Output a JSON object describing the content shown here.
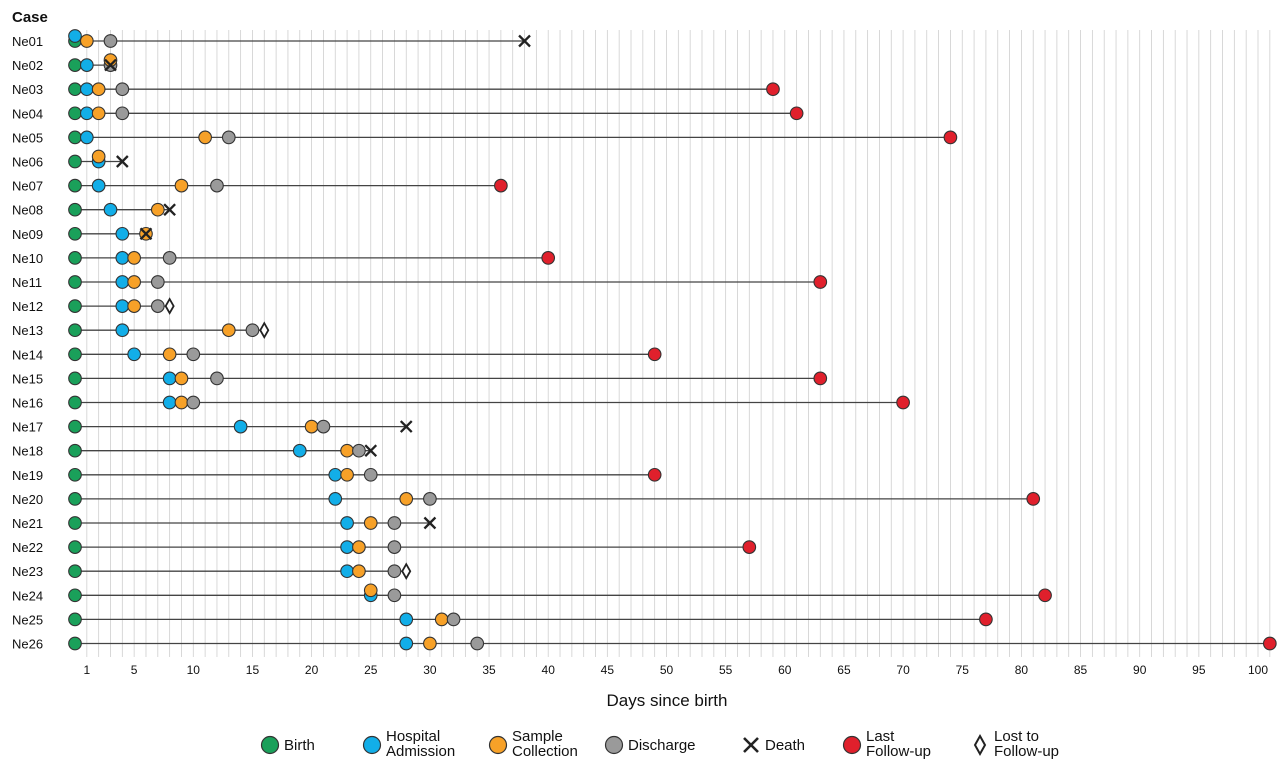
{
  "chart_data": {
    "type": "scatter",
    "subtype": "timeline",
    "ylabel": "Case",
    "xlabel": "Days since birth",
    "xlim": [
      0,
      101
    ],
    "x_ticks": [
      1,
      5,
      10,
      15,
      20,
      25,
      30,
      35,
      40,
      45,
      50,
      55,
      60,
      65,
      70,
      75,
      80,
      85,
      90,
      95,
      100
    ],
    "grid": "vertical",
    "legend_position": "bottom",
    "event_types": [
      {
        "key": "birth",
        "label": "Birth",
        "color": "#1aa05a",
        "shape": "circle"
      },
      {
        "key": "admission",
        "label": "Hospital Admission",
        "color": "#12aee8",
        "shape": "circle"
      },
      {
        "key": "sample",
        "label": "Sample Collection",
        "color": "#f7a128",
        "shape": "circle"
      },
      {
        "key": "discharge",
        "label": "Discharge",
        "color": "#9a9a9a",
        "shape": "circle"
      },
      {
        "key": "death",
        "label": "Death",
        "color": "#222222",
        "shape": "x"
      },
      {
        "key": "followup",
        "label": "Last Follow-up",
        "color": "#e0202c",
        "shape": "circle"
      },
      {
        "key": "lost",
        "label": "Lost to Follow-up",
        "color": "#222222",
        "shape": "diamond"
      }
    ],
    "cases": [
      {
        "name": "Ne01",
        "events": [
          [
            "birth",
            0
          ],
          [
            "admission",
            0
          ],
          [
            "sample",
            1
          ],
          [
            "discharge",
            3
          ],
          [
            "death",
            38
          ]
        ]
      },
      {
        "name": "Ne02",
        "events": [
          [
            "birth",
            0
          ],
          [
            "admission",
            1
          ],
          [
            "discharge",
            3
          ],
          [
            "sample",
            3
          ],
          [
            "death",
            3
          ]
        ]
      },
      {
        "name": "Ne03",
        "events": [
          [
            "birth",
            0
          ],
          [
            "admission",
            1
          ],
          [
            "sample",
            2
          ],
          [
            "discharge",
            4
          ],
          [
            "followup",
            59
          ]
        ]
      },
      {
        "name": "Ne04",
        "events": [
          [
            "birth",
            0
          ],
          [
            "admission",
            1
          ],
          [
            "sample",
            2
          ],
          [
            "discharge",
            4
          ],
          [
            "followup",
            61
          ]
        ]
      },
      {
        "name": "Ne05",
        "events": [
          [
            "birth",
            0
          ],
          [
            "admission",
            1
          ],
          [
            "sample",
            11
          ],
          [
            "discharge",
            13
          ],
          [
            "followup",
            74
          ]
        ]
      },
      {
        "name": "Ne06",
        "events": [
          [
            "birth",
            0
          ],
          [
            "admission",
            2
          ],
          [
            "sample",
            2
          ],
          [
            "death",
            4
          ]
        ]
      },
      {
        "name": "Ne07",
        "events": [
          [
            "birth",
            0
          ],
          [
            "admission",
            2
          ],
          [
            "sample",
            9
          ],
          [
            "discharge",
            12
          ],
          [
            "followup",
            36
          ]
        ]
      },
      {
        "name": "Ne08",
        "events": [
          [
            "birth",
            0
          ],
          [
            "admission",
            3
          ],
          [
            "sample",
            7
          ],
          [
            "death",
            8
          ]
        ]
      },
      {
        "name": "Ne09",
        "events": [
          [
            "birth",
            0
          ],
          [
            "admission",
            4
          ],
          [
            "sample",
            6
          ],
          [
            "death",
            6
          ]
        ]
      },
      {
        "name": "Ne10",
        "events": [
          [
            "birth",
            0
          ],
          [
            "admission",
            4
          ],
          [
            "sample",
            5
          ],
          [
            "discharge",
            8
          ],
          [
            "followup",
            40
          ]
        ]
      },
      {
        "name": "Ne11",
        "events": [
          [
            "birth",
            0
          ],
          [
            "admission",
            4
          ],
          [
            "sample",
            5
          ],
          [
            "discharge",
            7
          ],
          [
            "followup",
            63
          ]
        ]
      },
      {
        "name": "Ne12",
        "events": [
          [
            "birth",
            0
          ],
          [
            "admission",
            4
          ],
          [
            "sample",
            5
          ],
          [
            "discharge",
            7
          ],
          [
            "lost",
            8
          ]
        ]
      },
      {
        "name": "Ne13",
        "events": [
          [
            "birth",
            0
          ],
          [
            "admission",
            4
          ],
          [
            "sample",
            13
          ],
          [
            "discharge",
            15
          ],
          [
            "lost",
            16
          ]
        ]
      },
      {
        "name": "Ne14",
        "events": [
          [
            "birth",
            0
          ],
          [
            "admission",
            5
          ],
          [
            "sample",
            8
          ],
          [
            "discharge",
            10
          ],
          [
            "followup",
            49
          ]
        ]
      },
      {
        "name": "Ne15",
        "events": [
          [
            "birth",
            0
          ],
          [
            "admission",
            8
          ],
          [
            "sample",
            9
          ],
          [
            "discharge",
            12
          ],
          [
            "followup",
            63
          ]
        ]
      },
      {
        "name": "Ne16",
        "events": [
          [
            "birth",
            0
          ],
          [
            "admission",
            8
          ],
          [
            "sample",
            9
          ],
          [
            "discharge",
            10
          ],
          [
            "followup",
            70
          ]
        ]
      },
      {
        "name": "Ne17",
        "events": [
          [
            "birth",
            0
          ],
          [
            "admission",
            14
          ],
          [
            "sample",
            20
          ],
          [
            "discharge",
            21
          ],
          [
            "death",
            28
          ]
        ]
      },
      {
        "name": "Ne18",
        "events": [
          [
            "birth",
            0
          ],
          [
            "admission",
            19
          ],
          [
            "sample",
            23
          ],
          [
            "discharge",
            24
          ],
          [
            "death",
            25
          ]
        ]
      },
      {
        "name": "Ne19",
        "events": [
          [
            "birth",
            0
          ],
          [
            "admission",
            22
          ],
          [
            "sample",
            23
          ],
          [
            "discharge",
            25
          ],
          [
            "followup",
            49
          ]
        ]
      },
      {
        "name": "Ne20",
        "events": [
          [
            "birth",
            0
          ],
          [
            "admission",
            22
          ],
          [
            "sample",
            28
          ],
          [
            "discharge",
            30
          ],
          [
            "followup",
            81
          ]
        ]
      },
      {
        "name": "Ne21",
        "events": [
          [
            "birth",
            0
          ],
          [
            "admission",
            23
          ],
          [
            "sample",
            25
          ],
          [
            "discharge",
            27
          ],
          [
            "death",
            30
          ]
        ]
      },
      {
        "name": "Ne22",
        "events": [
          [
            "birth",
            0
          ],
          [
            "admission",
            23
          ],
          [
            "sample",
            24
          ],
          [
            "discharge",
            27
          ],
          [
            "followup",
            57
          ]
        ]
      },
      {
        "name": "Ne23",
        "events": [
          [
            "birth",
            0
          ],
          [
            "admission",
            23
          ],
          [
            "sample",
            24
          ],
          [
            "discharge",
            27
          ],
          [
            "lost",
            28
          ]
        ]
      },
      {
        "name": "Ne24",
        "events": [
          [
            "birth",
            0
          ],
          [
            "admission",
            25
          ],
          [
            "sample",
            25
          ],
          [
            "discharge",
            27
          ],
          [
            "followup",
            82
          ]
        ]
      },
      {
        "name": "Ne25",
        "events": [
          [
            "birth",
            0
          ],
          [
            "admission",
            28
          ],
          [
            "sample",
            31
          ],
          [
            "discharge",
            32
          ],
          [
            "followup",
            77
          ]
        ]
      },
      {
        "name": "Ne26",
        "events": [
          [
            "birth",
            0
          ],
          [
            "admission",
            28
          ],
          [
            "sample",
            30
          ],
          [
            "discharge",
            34
          ],
          [
            "followup",
            101
          ]
        ]
      }
    ]
  }
}
